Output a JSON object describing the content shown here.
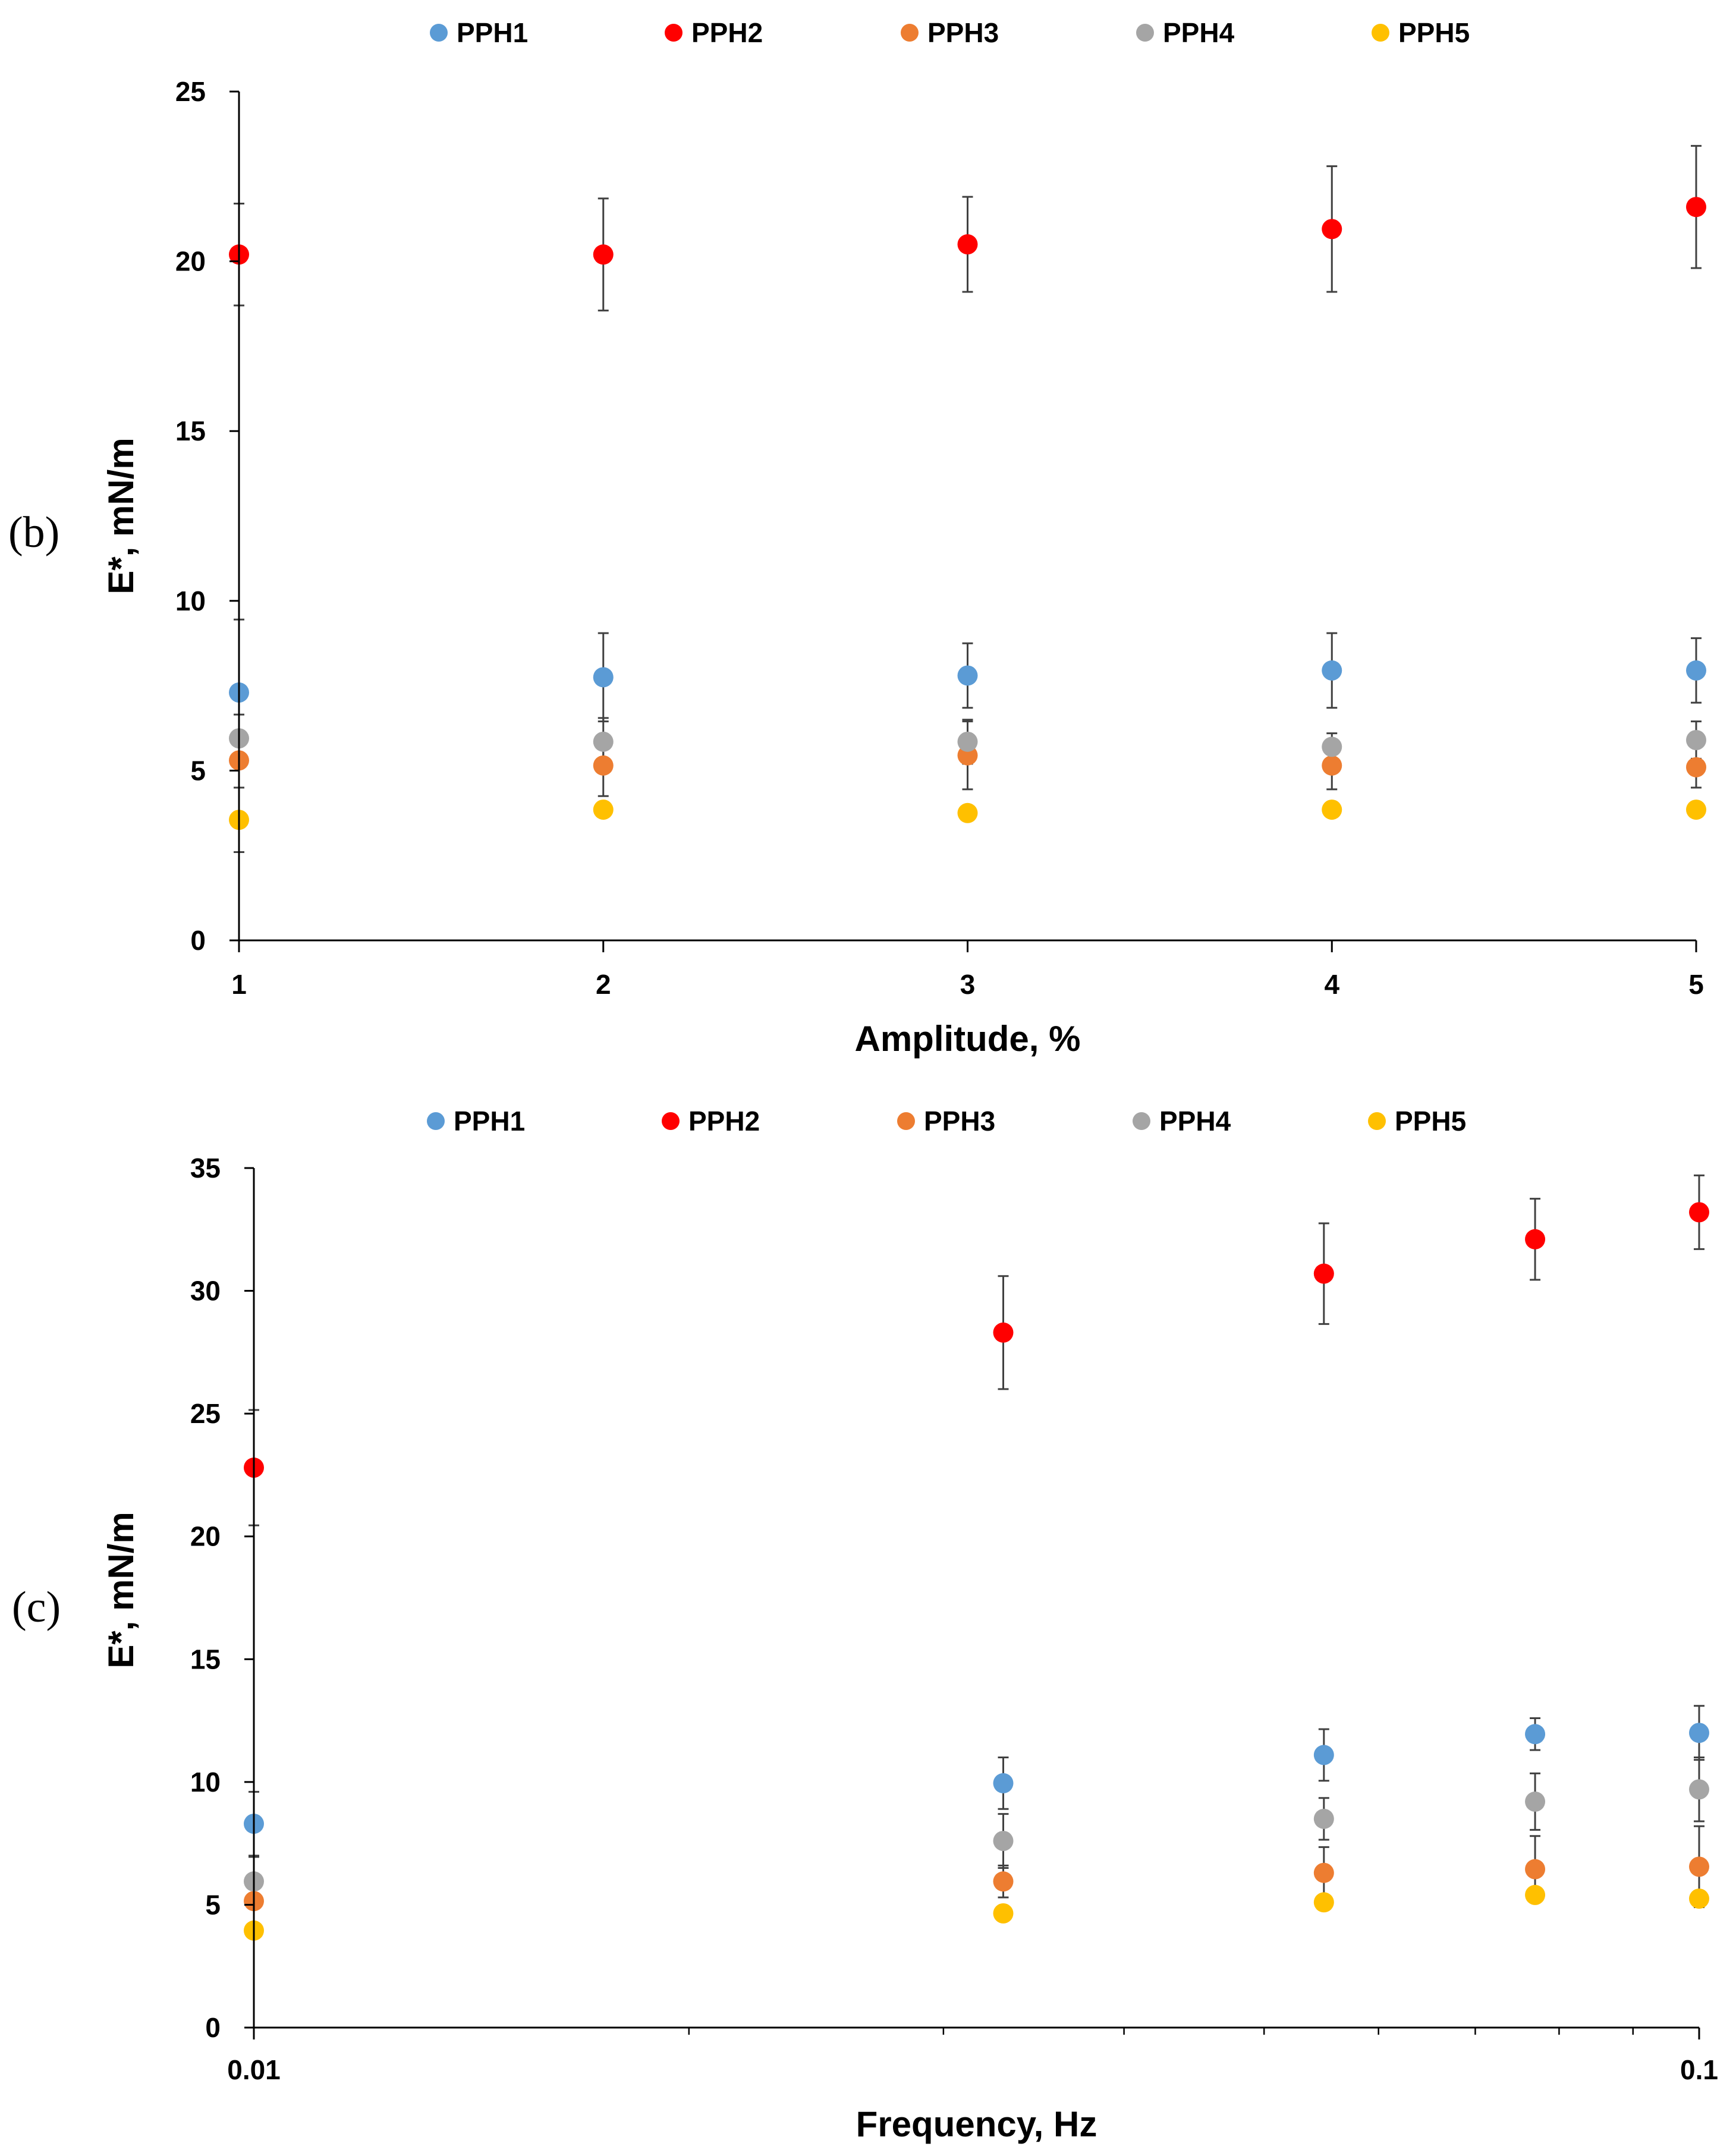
{
  "chart_data": [
    {
      "type": "scatter",
      "panel_label": "(b)",
      "title": "",
      "xlabel": "Amplitude, %",
      "ylabel": "E*, mN/m",
      "xscale": "linear",
      "xlim": [
        1,
        5
      ],
      "ylim": [
        0,
        25
      ],
      "x_ticks": [
        1,
        2,
        3,
        4,
        5
      ],
      "x_tick_labels": [
        "1",
        "2",
        "3",
        "4",
        "5"
      ],
      "y_ticks": [
        0,
        5,
        10,
        15,
        20,
        25
      ],
      "y_tick_labels": [
        "0",
        "5",
        "10",
        "15",
        "20",
        "25"
      ],
      "grid": false,
      "legend_position": "top",
      "x": [
        1,
        2,
        3,
        4,
        5
      ],
      "series": [
        {
          "name": "PPH1",
          "color": "#5B9BD5",
          "values": [
            7.3,
            7.75,
            7.8,
            7.95,
            7.95
          ],
          "errors": [
            2.15,
            1.3,
            0.95,
            1.1,
            0.95
          ]
        },
        {
          "name": "PPH2",
          "color": "#FF0000",
          "values": [
            20.2,
            20.2,
            20.5,
            20.95,
            21.6
          ],
          "errors": [
            1.5,
            1.65,
            1.4,
            1.85,
            1.8
          ]
        },
        {
          "name": "PPH3",
          "color": "#ED7D31",
          "values": [
            5.3,
            5.15,
            5.45,
            5.15,
            5.1
          ],
          "errors": [
            0.8,
            0.9,
            1.0,
            0.7,
            0.6
          ]
        },
        {
          "name": "PPH4",
          "color": "#A5A5A5",
          "values": [
            5.95,
            5.85,
            5.85,
            5.7,
            5.9
          ],
          "errors": [
            0.7,
            0.7,
            0.65,
            0.4,
            0.55
          ]
        },
        {
          "name": "PPH5",
          "color": "#FFC000",
          "values": [
            3.55,
            3.85,
            3.75,
            3.85,
            3.85
          ],
          "errors": [
            0.95,
            0,
            0,
            0,
            0
          ]
        }
      ]
    },
    {
      "type": "scatter",
      "panel_label": "(c)",
      "title": "",
      "xlabel": "Frequency, Hz",
      "ylabel": "E*, mN/m",
      "xscale": "log",
      "xlim": [
        0.01,
        0.1
      ],
      "ylim": [
        0,
        35
      ],
      "x_ticks": [
        0.01,
        0.1
      ],
      "x_tick_labels": [
        "0.01",
        "0.1"
      ],
      "x_minor_ticks": [
        0.02,
        0.03,
        0.04,
        0.05,
        0.06,
        0.07,
        0.08,
        0.09
      ],
      "y_ticks": [
        0,
        5,
        10,
        15,
        20,
        25,
        30,
        35
      ],
      "y_tick_labels": [
        "0",
        "5",
        "10",
        "15",
        "20",
        "25",
        "30",
        "35"
      ],
      "grid": false,
      "legend_position": "top",
      "x": [
        0.01,
        0.033,
        0.055,
        0.077,
        0.1
      ],
      "series": [
        {
          "name": "PPH1",
          "color": "#5B9BD5",
          "values": [
            8.3,
            9.95,
            11.1,
            11.95,
            12.0
          ],
          "errors": [
            1.3,
            1.05,
            1.05,
            0.65,
            1.1
          ]
        },
        {
          "name": "PPH2",
          "color": "#FF0000",
          "values": [
            22.8,
            28.3,
            30.7,
            32.1,
            33.2
          ],
          "errors": [
            2.35,
            2.3,
            2.05,
            1.65,
            1.5
          ]
        },
        {
          "name": "PPH3",
          "color": "#ED7D31",
          "values": [
            5.15,
            5.95,
            6.3,
            6.45,
            6.55
          ],
          "errors": [
            0.9,
            0.65,
            1.05,
            1.35,
            1.65
          ]
        },
        {
          "name": "PPH4",
          "color": "#A5A5A5",
          "values": [
            5.95,
            7.6,
            8.5,
            9.2,
            9.7
          ],
          "errors": [
            1.0,
            1.1,
            0.85,
            1.15,
            1.3
          ]
        },
        {
          "name": "PPH5",
          "color": "#FFC000",
          "values": [
            3.95,
            4.65,
            5.1,
            5.4,
            5.25
          ],
          "errors": [
            0,
            0,
            0,
            0,
            0
          ]
        }
      ]
    }
  ]
}
